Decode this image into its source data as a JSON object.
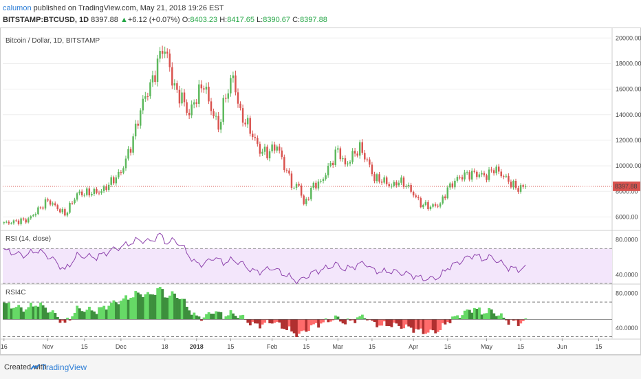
{
  "publisher": {
    "user": "calumon",
    "text": " published on TradingView.com, May 21, 2018 19:26 EST"
  },
  "ticker": {
    "symbol": "BITSTAMP:BTCUSD, 1D",
    "last": "8397.88",
    "change": "+6.12 (+0.07%)",
    "o_label": "O:",
    "o": "8403.23",
    "h_label": "H:",
    "h": "8417.65",
    "l_label": "L:",
    "l": "8390.67",
    "c_label": "C:",
    "c": "8397.88"
  },
  "footer": {
    "created": "Created with",
    "brand": "TradingView"
  },
  "colors": {
    "up": "#5cb85c",
    "down": "#d9534f",
    "rsi_line": "#8e44ad",
    "rsi_band": "#f3e6fb",
    "grid": "#eeeeee",
    "price_line": "#d9534f"
  },
  "chart_data": [
    {
      "type": "candlestick",
      "title": "Bitcoin / Dollar, 1D, BITSTAMP",
      "ylim": [
        5000,
        20500
      ],
      "y_ticks": [
        "20000.00",
        "18000.00",
        "16000.00",
        "14000.00",
        "12000.00",
        "10000.00",
        "8000.00",
        "6000.00"
      ],
      "last_price_label": "8397.88",
      "x_tick_labels": [
        "16",
        "Nov",
        "15",
        "Dec",
        "18",
        "2018",
        "15",
        "Feb",
        "15",
        "Mar",
        "15",
        "Apr",
        "16",
        "May",
        "15",
        "Jun",
        "15"
      ],
      "close_anchors": [
        [
          0,
          5500
        ],
        [
          10,
          5800
        ],
        [
          18,
          7300
        ],
        [
          25,
          6200
        ],
        [
          30,
          7800
        ],
        [
          40,
          8000
        ],
        [
          48,
          9500
        ],
        [
          52,
          11500
        ],
        [
          57,
          15000
        ],
        [
          61,
          16700
        ],
        [
          65,
          19300
        ],
        [
          67,
          18500
        ],
        [
          70,
          16000
        ],
        [
          73,
          15300
        ],
        [
          76,
          14000
        ],
        [
          78,
          15000
        ],
        [
          82,
          16500
        ],
        [
          84,
          15000
        ],
        [
          88,
          13000
        ],
        [
          91,
          15500
        ],
        [
          94,
          17000
        ],
        [
          97,
          14000
        ],
        [
          100,
          13200
        ],
        [
          105,
          11200
        ],
        [
          108,
          11000
        ],
        [
          112,
          11600
        ],
        [
          115,
          10000
        ],
        [
          119,
          8200
        ],
        [
          121,
          8600
        ],
        [
          123,
          6900
        ],
        [
          127,
          8500
        ],
        [
          130,
          8700
        ],
        [
          135,
          10500
        ],
        [
          137,
          11300
        ],
        [
          140,
          10000
        ],
        [
          143,
          10800
        ],
        [
          146,
          11400
        ],
        [
          149,
          10400
        ],
        [
          152,
          9000
        ],
        [
          155,
          8900
        ],
        [
          159,
          8400
        ],
        [
          162,
          8800
        ],
        [
          165,
          8500
        ],
        [
          168,
          7800
        ],
        [
          171,
          7000
        ],
        [
          175,
          6800
        ],
        [
          179,
          7000
        ],
        [
          182,
          8200
        ],
        [
          186,
          9000
        ],
        [
          189,
          9300
        ],
        [
          193,
          9400
        ],
        [
          198,
          9200
        ],
        [
          201,
          9800
        ],
        [
          205,
          9200
        ],
        [
          208,
          8600
        ],
        [
          211,
          8200
        ],
        [
          214,
          8398
        ]
      ]
    },
    {
      "type": "line",
      "title": "RSI (14, close)",
      "ylim": [
        30,
        90
      ],
      "y_ticks": [
        "80.0000",
        "40.0000"
      ],
      "band": [
        30,
        70
      ],
      "anchors": [
        [
          0,
          68
        ],
        [
          8,
          62
        ],
        [
          14,
          68
        ],
        [
          20,
          58
        ],
        [
          25,
          45
        ],
        [
          30,
          62
        ],
        [
          38,
          60
        ],
        [
          44,
          68
        ],
        [
          50,
          74
        ],
        [
          55,
          80
        ],
        [
          60,
          78
        ],
        [
          64,
          86
        ],
        [
          67,
          76
        ],
        [
          70,
          80
        ],
        [
          74,
          70
        ],
        [
          78,
          54
        ],
        [
          82,
          52
        ],
        [
          86,
          60
        ],
        [
          90,
          54
        ],
        [
          94,
          57
        ],
        [
          98,
          52
        ],
        [
          102,
          44
        ],
        [
          106,
          44
        ],
        [
          110,
          48
        ],
        [
          114,
          42
        ],
        [
          118,
          36
        ],
        [
          121,
          32
        ],
        [
          124,
          38
        ],
        [
          128,
          44
        ],
        [
          132,
          47
        ],
        [
          136,
          52
        ],
        [
          140,
          46
        ],
        [
          144,
          50
        ],
        [
          148,
          54
        ],
        [
          151,
          46
        ],
        [
          155,
          43
        ],
        [
          159,
          44
        ],
        [
          163,
          42
        ],
        [
          167,
          40
        ],
        [
          171,
          36
        ],
        [
          175,
          35
        ],
        [
          179,
          38
        ],
        [
          182,
          48
        ],
        [
          185,
          52
        ],
        [
          189,
          58
        ],
        [
          193,
          63
        ],
        [
          196,
          58
        ],
        [
          200,
          60
        ],
        [
          203,
          55
        ],
        [
          207,
          48
        ],
        [
          211,
          46
        ],
        [
          214,
          48
        ]
      ]
    },
    {
      "type": "area",
      "title": "RSI4C",
      "ylim": [
        28,
        90
      ],
      "y_ticks": [
        "80.0000",
        "40.0000"
      ],
      "midline": 50,
      "band": [
        30,
        70
      ]
    }
  ]
}
